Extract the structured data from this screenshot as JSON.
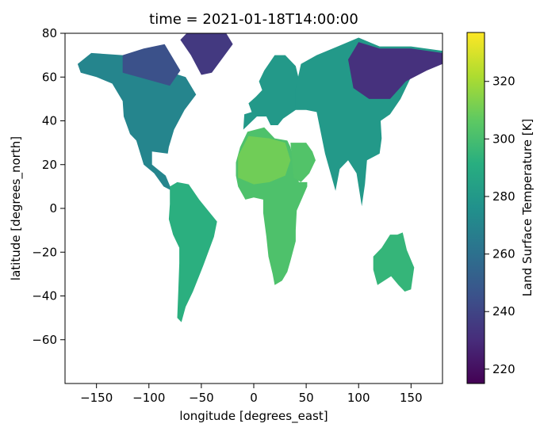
{
  "chart_data": {
    "type": "heatmap",
    "title": "time = 2021-01-18T14:00:00",
    "xlabel": "longitude [degrees_east]",
    "ylabel": "latitude [degrees_north]",
    "xlim": [
      -180,
      180
    ],
    "ylim": [
      -80,
      80
    ],
    "xticks": [
      -150,
      -100,
      -50,
      0,
      50,
      100,
      150
    ],
    "yticks": [
      80,
      60,
      40,
      20,
      0,
      -20,
      -40,
      -60
    ],
    "colorbar": {
      "label": "Land Surface Temperature [K]",
      "colormap": "viridis",
      "range": [
        215,
        337
      ],
      "ticks": [
        220,
        240,
        260,
        280,
        300,
        320
      ]
    },
    "regions": [
      {
        "name": "North America",
        "temperature": 270,
        "points": [
          [
            -168,
            66
          ],
          [
            -155,
            71
          ],
          [
            -125,
            70
          ],
          [
            -95,
            72
          ],
          [
            -78,
            62
          ],
          [
            -65,
            60
          ],
          [
            -55,
            52
          ],
          [
            -66,
            45
          ],
          [
            -76,
            36
          ],
          [
            -81,
            28
          ],
          [
            -82,
            25
          ],
          [
            -97,
            26
          ],
          [
            -97,
            20
          ],
          [
            -92,
            18
          ],
          [
            -84,
            15
          ],
          [
            -78,
            8
          ],
          [
            -86,
            10
          ],
          [
            -95,
            16
          ],
          [
            -105,
            20
          ],
          [
            -112,
            31
          ],
          [
            -118,
            34
          ],
          [
            -124,
            42
          ],
          [
            -125,
            49
          ],
          [
            -135,
            57
          ],
          [
            -150,
            60
          ],
          [
            -165,
            62
          ]
        ]
      },
      {
        "name": "Canada North",
        "temperature": 245,
        "points": [
          [
            -125,
            70
          ],
          [
            -105,
            73
          ],
          [
            -85,
            75
          ],
          [
            -70,
            63
          ],
          [
            -80,
            56
          ],
          [
            -95,
            58
          ],
          [
            -110,
            60
          ],
          [
            -125,
            62
          ]
        ]
      },
      {
        "name": "Greenland",
        "temperature": 235,
        "points": [
          [
            -70,
            77
          ],
          [
            -60,
            82
          ],
          [
            -30,
            83
          ],
          [
            -20,
            75
          ],
          [
            -40,
            62
          ],
          [
            -50,
            61
          ],
          [
            -60,
            70
          ]
        ]
      },
      {
        "name": "South America",
        "temperature": 292,
        "points": [
          [
            -80,
            10
          ],
          [
            -73,
            12
          ],
          [
            -62,
            11
          ],
          [
            -52,
            4
          ],
          [
            -35,
            -6
          ],
          [
            -38,
            -13
          ],
          [
            -48,
            -26
          ],
          [
            -58,
            -38
          ],
          [
            -65,
            -45
          ],
          [
            -69,
            -52
          ],
          [
            -73,
            -50
          ],
          [
            -72,
            -38
          ],
          [
            -71,
            -25
          ],
          [
            -71,
            -18
          ],
          [
            -77,
            -12
          ],
          [
            -81,
            -5
          ],
          [
            -80,
            2
          ]
        ]
      },
      {
        "name": "Europe",
        "temperature": 280,
        "points": [
          [
            -10,
            36
          ],
          [
            -9,
            43
          ],
          [
            -2,
            44
          ],
          [
            -5,
            48
          ],
          [
            2,
            51
          ],
          [
            8,
            54
          ],
          [
            5,
            58
          ],
          [
            10,
            63
          ],
          [
            20,
            70
          ],
          [
            30,
            70
          ],
          [
            40,
            65
          ],
          [
            45,
            55
          ],
          [
            40,
            45
          ],
          [
            28,
            41
          ],
          [
            23,
            38
          ],
          [
            16,
            38
          ],
          [
            12,
            42
          ],
          [
            3,
            42
          ]
        ]
      },
      {
        "name": "Africa",
        "temperature": 302,
        "points": [
          [
            -17,
            15
          ],
          [
            -17,
            21
          ],
          [
            -13,
            28
          ],
          [
            -6,
            35
          ],
          [
            10,
            37
          ],
          [
            20,
            32
          ],
          [
            32,
            31
          ],
          [
            35,
            28
          ],
          [
            43,
            12
          ],
          [
            51,
            12
          ],
          [
            51,
            10
          ],
          [
            41,
            -1
          ],
          [
            40,
            -10
          ],
          [
            40,
            -15
          ],
          [
            35,
            -24
          ],
          [
            32,
            -29
          ],
          [
            27,
            -33
          ],
          [
            20,
            -35
          ],
          [
            18,
            -30
          ],
          [
            14,
            -22
          ],
          [
            12,
            -13
          ],
          [
            9,
            -2
          ],
          [
            9,
            4
          ],
          [
            0,
            5
          ],
          [
            -8,
            4
          ],
          [
            -15,
            10
          ]
        ]
      },
      {
        "name": "Sahara",
        "temperature": 310,
        "points": [
          [
            -15,
            14
          ],
          [
            -15,
            24
          ],
          [
            -5,
            33
          ],
          [
            15,
            32
          ],
          [
            30,
            30
          ],
          [
            35,
            22
          ],
          [
            30,
            15
          ],
          [
            15,
            12
          ],
          [
            0,
            11
          ]
        ]
      },
      {
        "name": "Arabia",
        "temperature": 303,
        "points": [
          [
            35,
            30
          ],
          [
            38,
            14
          ],
          [
            45,
            12
          ],
          [
            53,
            16
          ],
          [
            59,
            22
          ],
          [
            56,
            26
          ],
          [
            50,
            30
          ],
          [
            44,
            30
          ]
        ]
      },
      {
        "name": "Asia",
        "temperature": 280,
        "points": [
          [
            40,
            45
          ],
          [
            50,
            45
          ],
          [
            60,
            44
          ],
          [
            68,
            25
          ],
          [
            78,
            8
          ],
          [
            82,
            18
          ],
          [
            90,
            22
          ],
          [
            98,
            16
          ],
          [
            103,
            1
          ],
          [
            106,
            11
          ],
          [
            108,
            22
          ],
          [
            120,
            25
          ],
          [
            122,
            32
          ],
          [
            121,
            40
          ],
          [
            130,
            43
          ],
          [
            140,
            50
          ],
          [
            150,
            60
          ],
          [
            160,
            62
          ],
          [
            170,
            66
          ],
          [
            180,
            68
          ],
          [
            180,
            72
          ],
          [
            150,
            74
          ],
          [
            120,
            74
          ],
          [
            100,
            78
          ],
          [
            80,
            74
          ],
          [
            60,
            70
          ],
          [
            45,
            66
          ],
          [
            40,
            55
          ]
        ]
      },
      {
        "name": "Siberia",
        "temperature": 232,
        "points": [
          [
            95,
            55
          ],
          [
            110,
            50
          ],
          [
            130,
            50
          ],
          [
            145,
            58
          ],
          [
            165,
            63
          ],
          [
            180,
            66
          ],
          [
            180,
            71
          ],
          [
            150,
            73
          ],
          [
            120,
            73
          ],
          [
            100,
            76
          ],
          [
            90,
            68
          ]
        ]
      },
      {
        "name": "Australia",
        "temperature": 295,
        "points": [
          [
            114,
            -22
          ],
          [
            122,
            -18
          ],
          [
            130,
            -12
          ],
          [
            137,
            -12
          ],
          [
            142,
            -11
          ],
          [
            146,
            -19
          ],
          [
            153,
            -27
          ],
          [
            150,
            -37
          ],
          [
            144,
            -38
          ],
          [
            138,
            -35
          ],
          [
            131,
            -31
          ],
          [
            118,
            -35
          ],
          [
            114,
            -28
          ]
        ]
      }
    ]
  }
}
